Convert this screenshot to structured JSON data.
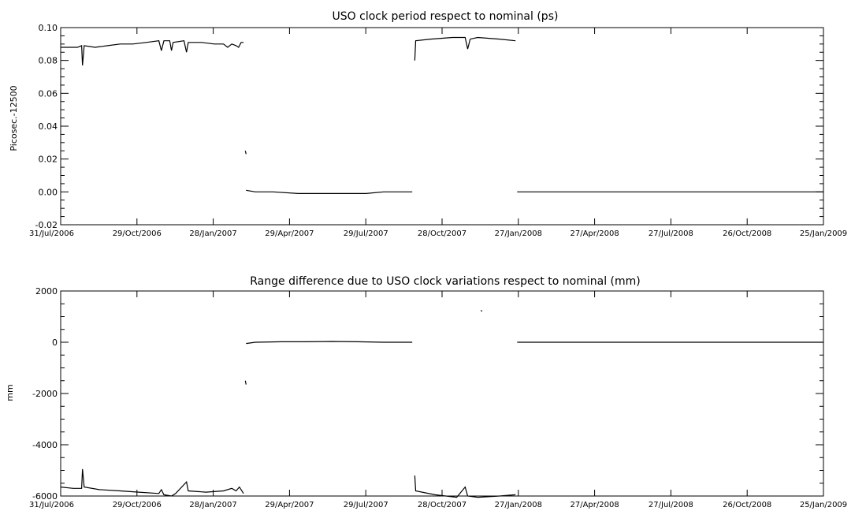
{
  "chart_data": [
    {
      "type": "line",
      "title": "USO clock period respect to nominal (ps)",
      "xlabel": "",
      "ylabel": "Picosec.-12500",
      "ylim": [
        -0.02,
        0.1
      ],
      "xlim": [
        "2006-07-31",
        "2009-01-25"
      ],
      "x_tick_labels": [
        "31/Jul/2006",
        "29/Oct/2006",
        "28/Jan/2007",
        "29/Apr/2007",
        "29/Jul/2007",
        "28/Oct/2007",
        "27/Jan/2008",
        "27/Apr/2008",
        "27/Jul/2008",
        "26/Oct/2008",
        "25/Jan/2009"
      ],
      "y_ticks": [
        -0.02,
        0.0,
        0.02,
        0.04,
        0.06,
        0.08,
        0.1
      ],
      "y_tick_labels": [
        "-0.02",
        "0.00",
        "0.02",
        "0.04",
        "0.06",
        "0.08",
        "0.10"
      ],
      "grid": false,
      "series": [
        {
          "segments": [
            [
              [
                "2006-07-31",
                0.088
              ],
              [
                "2006-08-10",
                0.088
              ],
              [
                "2006-08-20",
                0.088
              ],
              [
                "2006-08-25",
                0.089
              ],
              [
                "2006-08-26",
                0.077
              ],
              [
                "2006-08-28",
                0.089
              ],
              [
                "2006-09-10",
                0.088
              ],
              [
                "2006-09-25",
                0.089
              ],
              [
                "2006-10-10",
                0.09
              ],
              [
                "2006-10-25",
                0.09
              ],
              [
                "2006-11-10",
                0.091
              ],
              [
                "2006-11-25",
                0.092
              ],
              [
                "2006-11-28",
                0.086
              ],
              [
                "2006-12-01",
                0.092
              ],
              [
                "2006-12-08",
                0.092
              ],
              [
                "2006-12-10",
                0.086
              ],
              [
                "2006-12-12",
                0.091
              ],
              [
                "2006-12-25",
                0.092
              ],
              [
                "2006-12-28",
                0.085
              ],
              [
                "2006-12-30",
                0.091
              ],
              [
                "2007-01-15",
                0.091
              ],
              [
                "2007-01-30",
                0.09
              ],
              [
                "2007-02-10",
                0.09
              ],
              [
                "2007-02-15",
                0.088
              ],
              [
                "2007-02-20",
                0.09
              ],
              [
                "2007-02-25",
                0.089
              ],
              [
                "2007-02-28",
                0.088
              ],
              [
                "2007-03-03",
                0.091
              ],
              [
                "2007-03-06",
                0.091
              ]
            ],
            [
              [
                "2007-03-08",
                0.025
              ],
              [
                "2007-03-09",
                0.023
              ]
            ],
            [
              [
                "2007-03-09",
                0.001
              ],
              [
                "2007-03-20",
                0.0
              ],
              [
                "2007-04-10",
                0.0
              ],
              [
                "2007-05-10",
                -0.001
              ],
              [
                "2007-06-10",
                -0.001
              ],
              [
                "2007-07-10",
                -0.001
              ],
              [
                "2007-07-30",
                -0.001
              ],
              [
                "2007-08-20",
                0.0
              ],
              [
                "2007-09-23",
                0.0
              ]
            ],
            [
              [
                "2007-09-26",
                0.08
              ],
              [
                "2007-09-27",
                0.092
              ],
              [
                "2007-10-15",
                0.093
              ],
              [
                "2007-11-10",
                0.094
              ],
              [
                "2007-11-25",
                0.094
              ],
              [
                "2007-11-28",
                0.087
              ],
              [
                "2007-12-01",
                0.093
              ],
              [
                "2007-12-10",
                0.094
              ],
              [
                "2008-01-05",
                0.093
              ],
              [
                "2008-01-24",
                0.092
              ]
            ],
            [
              [
                "2008-01-26",
                0.0
              ],
              [
                "2008-04-01",
                0.0
              ],
              [
                "2008-07-01",
                0.0
              ],
              [
                "2008-10-01",
                0.0
              ],
              [
                "2009-01-25",
                0.0
              ]
            ]
          ]
        }
      ]
    },
    {
      "type": "line",
      "title": "Range difference due to USO clock variations respect to nominal (mm)",
      "xlabel": "",
      "ylabel": "mm",
      "ylim": [
        -6000,
        2000
      ],
      "xlim": [
        "2006-07-31",
        "2009-01-25"
      ],
      "x_tick_labels": [
        "31/Jul/2006",
        "29/Oct/2006",
        "28/Jan/2007",
        "29/Apr/2007",
        "29/Jul/2007",
        "28/Oct/2007",
        "27/Jan/2008",
        "27/Apr/2008",
        "27/Jul/2008",
        "26/Oct/2008",
        "25/Jan/2009"
      ],
      "y_ticks": [
        -6000,
        -4000,
        -2000,
        0,
        2000
      ],
      "y_tick_labels": [
        "-6000",
        "-4000",
        "-2000",
        "0",
        "2000"
      ],
      "grid": false,
      "series": [
        {
          "segments": [
            [
              [
                "2006-07-31",
                -5650
              ],
              [
                "2006-08-15",
                -5700
              ],
              [
                "2006-08-25",
                -5700
              ],
              [
                "2006-08-26",
                -4950
              ],
              [
                "2006-08-28",
                -5650
              ],
              [
                "2006-09-15",
                -5750
              ],
              [
                "2006-10-10",
                -5800
              ],
              [
                "2006-11-01",
                -5850
              ],
              [
                "2006-11-25",
                -5900
              ],
              [
                "2006-11-28",
                -5750
              ],
              [
                "2006-12-01",
                -5950
              ],
              [
                "2006-12-10",
                -6000
              ],
              [
                "2006-12-15",
                -5900
              ],
              [
                "2006-12-28",
                -5450
              ],
              [
                "2006-12-30",
                -5800
              ],
              [
                "2007-01-20",
                -5850
              ],
              [
                "2007-02-10",
                -5800
              ],
              [
                "2007-02-20",
                -5700
              ],
              [
                "2007-02-25",
                -5800
              ],
              [
                "2007-03-01",
                -5650
              ],
              [
                "2007-03-06",
                -5900
              ]
            ],
            [
              [
                "2007-03-08",
                -1500
              ],
              [
                "2007-03-09",
                -1650
              ]
            ],
            [
              [
                "2007-03-09",
                -50
              ],
              [
                "2007-03-20",
                0
              ],
              [
                "2007-04-20",
                20
              ],
              [
                "2007-05-20",
                20
              ],
              [
                "2007-06-20",
                30
              ],
              [
                "2007-07-20",
                20
              ],
              [
                "2007-08-20",
                0
              ],
              [
                "2007-09-23",
                0
              ]
            ],
            [
              [
                "2007-09-26",
                -5200
              ],
              [
                "2007-09-27",
                -5800
              ],
              [
                "2007-10-20",
                -5950
              ],
              [
                "2007-11-15",
                -6050
              ],
              [
                "2007-11-25",
                -5650
              ],
              [
                "2007-11-28",
                -6000
              ],
              [
                "2007-12-10",
                -6050
              ],
              [
                "2008-01-05",
                -6000
              ],
              [
                "2008-01-24",
                -5950
              ]
            ],
            [
              [
                "2007-12-14",
                1250
              ],
              [
                "2007-12-15",
                1200
              ]
            ],
            [
              [
                "2008-01-26",
                0
              ],
              [
                "2008-04-01",
                0
              ],
              [
                "2008-07-01",
                0
              ],
              [
                "2008-10-01",
                0
              ],
              [
                "2009-01-25",
                0
              ]
            ]
          ]
        }
      ]
    }
  ]
}
